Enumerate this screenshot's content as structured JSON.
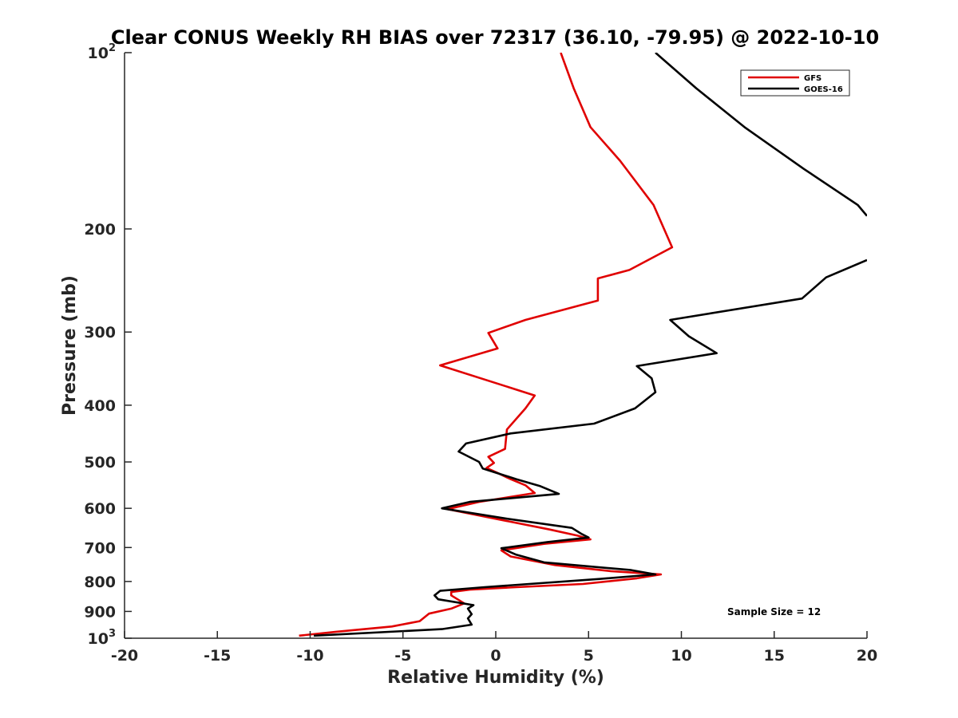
{
  "chart_data": {
    "type": "line",
    "title": "Clear CONUS Weekly RH BIAS over 72317 (36.10, -79.95) @ 2022-10-10",
    "xlabel": "Relative Humidity (%)",
    "ylabel": "Pressure (mb)",
    "xlim": [
      -20,
      20
    ],
    "ylim": [
      100,
      1000
    ],
    "y_scale": "log",
    "y_reversed": true,
    "grid": false,
    "legend_position": "top-right",
    "x_ticks": [
      -20,
      -15,
      -10,
      -5,
      0,
      5,
      10,
      15,
      20
    ],
    "x_tick_labels": [
      "-20",
      "-15",
      "-10",
      "-5",
      "0",
      "5",
      "10",
      "15",
      "20"
    ],
    "y_ticks": [
      100,
      200,
      300,
      400,
      500,
      600,
      700,
      800,
      900,
      1000
    ],
    "y_tick_labels": [
      {
        "base": "10",
        "exp": "2"
      },
      {
        "base": "200"
      },
      {
        "base": "300"
      },
      {
        "base": "400"
      },
      {
        "base": "500"
      },
      {
        "base": "600"
      },
      {
        "base": "700"
      },
      {
        "base": "800"
      },
      {
        "base": "900"
      },
      {
        "base": "10",
        "exp": "3"
      }
    ],
    "series": [
      {
        "name": "GFS",
        "color": "#e00000",
        "points": [
          [
            3.5,
            100
          ],
          [
            4.2,
            115
          ],
          [
            5.1,
            134
          ],
          [
            6.7,
            153
          ],
          [
            8.5,
            182
          ],
          [
            9.5,
            215
          ],
          [
            7.2,
            235
          ],
          [
            5.5,
            243
          ],
          [
            5.5,
            265
          ],
          [
            1.6,
            286
          ],
          [
            -0.4,
            301
          ],
          [
            0.1,
            320
          ],
          [
            -3.0,
            342
          ],
          [
            2.1,
            385
          ],
          [
            1.6,
            405
          ],
          [
            0.6,
            440
          ],
          [
            0.5,
            475
          ],
          [
            -0.4,
            490
          ],
          [
            -0.1,
            502
          ],
          [
            -0.5,
            512
          ],
          [
            0.1,
            522
          ],
          [
            0.8,
            535
          ],
          [
            1.6,
            548
          ],
          [
            2.1,
            565
          ],
          [
            -0.9,
            585
          ],
          [
            -2.6,
            602
          ],
          [
            0.3,
            628
          ],
          [
            2.9,
            652
          ],
          [
            4.4,
            668
          ],
          [
            5.1,
            678
          ],
          [
            2.6,
            690
          ],
          [
            0.3,
            708
          ],
          [
            0.8,
            725
          ],
          [
            3.2,
            750
          ],
          [
            6.2,
            768
          ],
          [
            8.9,
            778
          ],
          [
            7.6,
            790
          ],
          [
            4.7,
            808
          ],
          [
            1.1,
            818
          ],
          [
            -1.4,
            826
          ],
          [
            -2.4,
            834
          ],
          [
            -2.4,
            845
          ],
          [
            -1.7,
            872
          ],
          [
            -2.4,
            890
          ],
          [
            -3.6,
            908
          ],
          [
            -4.1,
            935
          ],
          [
            -5.6,
            955
          ],
          [
            -8.6,
            975
          ],
          [
            -10.6,
            990
          ]
        ]
      },
      {
        "name": "GOES-16",
        "color": "#000000",
        "points": [
          [
            8.6,
            100
          ],
          [
            10.8,
            115
          ],
          [
            13.4,
            134
          ],
          [
            16.6,
            158
          ],
          [
            19.5,
            182
          ],
          [
            20.0,
            190
          ],
          [
            null,
            null
          ],
          [
            20.0,
            226
          ],
          [
            17.8,
            242
          ],
          [
            16.5,
            263
          ],
          [
            9.4,
            286
          ],
          [
            10.4,
            305
          ],
          [
            11.9,
            326
          ],
          [
            7.6,
            343
          ],
          [
            8.4,
            360
          ],
          [
            8.6,
            380
          ],
          [
            7.5,
            405
          ],
          [
            5.3,
            430
          ],
          [
            0.8,
            447
          ],
          [
            -1.6,
            465
          ],
          [
            -2.0,
            480
          ],
          [
            -0.9,
            500
          ],
          [
            -0.7,
            513
          ],
          [
            1.1,
            535
          ],
          [
            2.4,
            550
          ],
          [
            3.4,
            567
          ],
          [
            -1.4,
            585
          ],
          [
            -2.9,
            600
          ],
          [
            0.6,
            625
          ],
          [
            4.1,
            648
          ],
          [
            4.6,
            663
          ],
          [
            5.0,
            673
          ],
          [
            2.8,
            685
          ],
          [
            0.3,
            702
          ],
          [
            1.1,
            720
          ],
          [
            2.6,
            742
          ],
          [
            7.3,
            765
          ],
          [
            8.6,
            778
          ],
          [
            5.6,
            792
          ],
          [
            -0.6,
            818
          ],
          [
            -3.0,
            830
          ],
          [
            -3.3,
            845
          ],
          [
            -3.1,
            858
          ],
          [
            -1.2,
            878
          ],
          [
            -1.5,
            890
          ],
          [
            -1.3,
            910
          ],
          [
            -1.5,
            925
          ],
          [
            -1.3,
            948
          ],
          [
            -2.9,
            965
          ],
          [
            -9.8,
            990
          ]
        ]
      }
    ],
    "annotations": [
      "Sample Size = 12"
    ]
  }
}
